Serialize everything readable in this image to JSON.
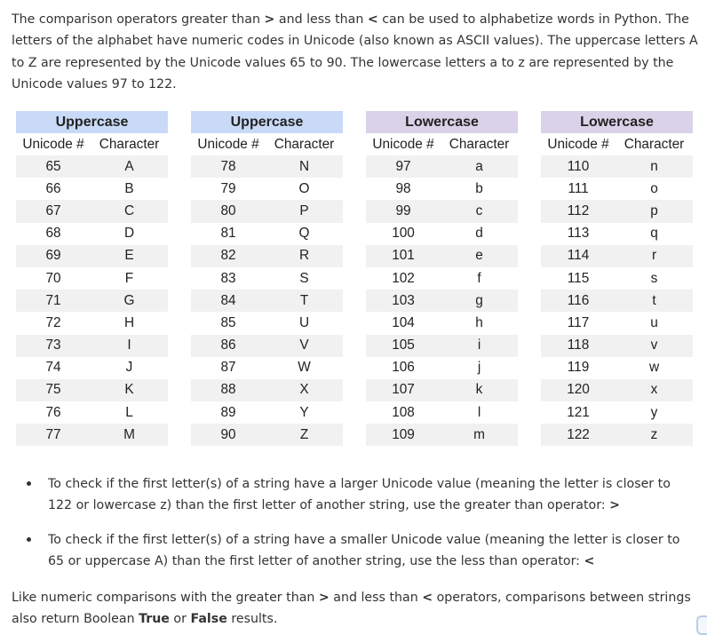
{
  "intro": {
    "t1": "The comparison operators greater than ",
    "gt": ">",
    "t2": " and less than ",
    "lt": "<",
    "t3": " can be used to alphabetize words in Python. The letters of the alphabet have numeric codes in Unicode (also known as ASCII values). The uppercase letters A to Z are represented by the Unicode values 65 to 90. The lowercase letters a to z are represented by the Unicode values 97 to 122."
  },
  "table": {
    "groups": [
      "Uppercase",
      "Uppercase",
      "Lowercase",
      "Lowercase"
    ],
    "sub_headers": {
      "code": "Unicode #",
      "char": "Character"
    },
    "columns": [
      {
        "codes": [
          "65",
          "66",
          "67",
          "68",
          "69",
          "70",
          "71",
          "72",
          "73",
          "74",
          "75",
          "76",
          "77"
        ],
        "chars": [
          "A",
          "B",
          "C",
          "D",
          "E",
          "F",
          "G",
          "H",
          "I",
          "J",
          "K",
          "L",
          "M"
        ]
      },
      {
        "codes": [
          "78",
          "79",
          "80",
          "81",
          "82",
          "83",
          "84",
          "85",
          "86",
          "87",
          "88",
          "89",
          "90"
        ],
        "chars": [
          "N",
          "O",
          "P",
          "Q",
          "R",
          "S",
          "T",
          "U",
          "V",
          "W",
          "X",
          "Y",
          "Z"
        ]
      },
      {
        "codes": [
          "97",
          "98",
          "99",
          "100",
          "101",
          "102",
          "103",
          "104",
          "105",
          "106",
          "107",
          "108",
          "109"
        ],
        "chars": [
          "a",
          "b",
          "c",
          "d",
          "e",
          "f",
          "g",
          "h",
          "i",
          "j",
          "k",
          "l",
          "m"
        ]
      },
      {
        "codes": [
          "110",
          "111",
          "112",
          "113",
          "114",
          "115",
          "116",
          "117",
          "118",
          "119",
          "120",
          "121",
          "122"
        ],
        "chars": [
          "n",
          "o",
          "p",
          "q",
          "r",
          "s",
          "t",
          "u",
          "v",
          "w",
          "x",
          "y",
          "z"
        ]
      }
    ]
  },
  "bullets": [
    {
      "text": "To check if the first letter(s) of a string have a larger Unicode value (meaning the letter is closer to 122 or lowercase z) than the first letter of another string, use the greater than operator: ",
      "op": ">"
    },
    {
      "text": "To check if the first letter(s) of a string have a smaller Unicode value (meaning the letter is closer to 65 or uppercase A) than the first letter of another string, use the less than operator: ",
      "op": "<"
    }
  ],
  "outro": {
    "t1": "Like numeric comparisons with the greater than ",
    "gt": ">",
    "t2": " and less than ",
    "lt": "<",
    "t3": " operators, comparisons between strings also return Boolean ",
    "true_word": "True",
    "t4": " or ",
    "false_word": "False",
    "t5": " results."
  }
}
